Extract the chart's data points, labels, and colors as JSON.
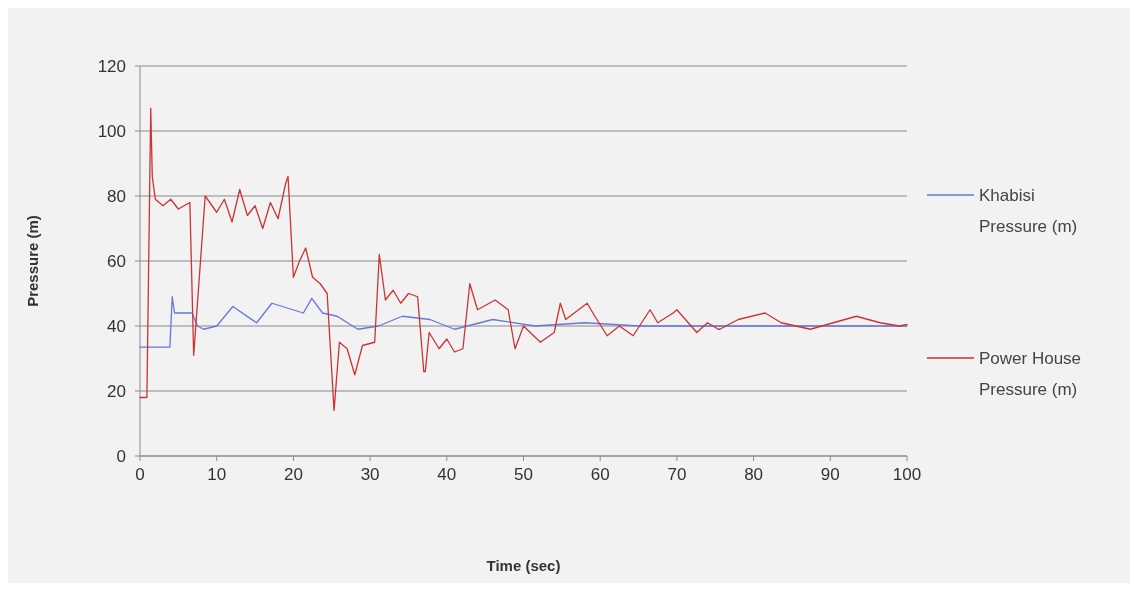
{
  "chart_data": {
    "type": "line",
    "xlabel": "Time (sec)",
    "ylabel": "Pressure (m)",
    "xlim": [
      0,
      100
    ],
    "xticks": [
      0,
      10,
      20,
      30,
      40,
      50,
      60,
      70,
      80,
      90,
      100
    ],
    "ylim": [
      0,
      120
    ],
    "yticks": [
      0,
      20,
      40,
      60,
      80,
      100,
      120
    ],
    "grid": "y",
    "legend": "right",
    "marker": "none",
    "line_style": "solid",
    "series": [
      {
        "name": "Khabisi Pressure (m)",
        "color": "#6677dd",
        "x": [
          0,
          3.9,
          4.2,
          4.5,
          6.8,
          7.5,
          8.3,
          10,
          12.1,
          15.2,
          17.2,
          21.3,
          22.4,
          23.8,
          25.7,
          28.4,
          31.1,
          34.2,
          37.8,
          41,
          46,
          51.5,
          58,
          65,
          75,
          85,
          100
        ],
        "values": [
          33.5,
          33.5,
          49,
          44,
          44,
          40,
          39,
          40,
          46,
          41,
          47,
          44,
          48.5,
          44,
          43,
          39,
          40,
          43,
          42,
          39,
          42,
          40,
          41,
          40,
          40,
          40,
          40
        ]
      },
      {
        "name": "Power House Pressure (m)",
        "color": "#cc3333",
        "x": [
          0,
          0.9,
          1.4,
          1.6,
          2,
          3,
          4,
          5,
          6.5,
          7,
          8.5,
          10,
          11,
          12,
          13,
          14,
          15,
          16,
          17,
          18,
          19,
          19.3,
          20,
          20.8,
          21.6,
          22.5,
          23.5,
          24.4,
          25.3,
          26,
          27,
          28,
          29,
          30.6,
          31.2,
          32,
          33,
          34,
          35,
          36.2,
          37,
          37.2,
          37.7,
          39,
          40,
          41,
          42.1,
          43,
          44,
          46.3,
          48,
          48.9,
          50,
          52.2,
          54,
          54.8,
          55.5,
          58.3,
          59.3,
          60.9,
          62.5,
          64.3,
          66.5,
          67.5,
          69.5,
          70,
          72.6,
          74,
          75.4,
          75.6,
          78,
          81.5,
          83.6,
          87.4,
          90.4,
          93.4,
          96.5,
          99,
          100
        ],
        "values": [
          18,
          18,
          107,
          86,
          79,
          77,
          79,
          76,
          78,
          31,
          80,
          75,
          79,
          72,
          82,
          74,
          77,
          70,
          78,
          73,
          84,
          86,
          55,
          60,
          64,
          55,
          53,
          50,
          14,
          35,
          33,
          25,
          34,
          35,
          62,
          48,
          51,
          47,
          50,
          49,
          26,
          26,
          38,
          33,
          36,
          32,
          33,
          53,
          45,
          48,
          45,
          33,
          40,
          35,
          38,
          47,
          42,
          47,
          43,
          37,
          40,
          37,
          45,
          41,
          44,
          45,
          38,
          41,
          39,
          39,
          42,
          44,
          41,
          39,
          41,
          43,
          41,
          40,
          40.5
        ]
      }
    ]
  }
}
